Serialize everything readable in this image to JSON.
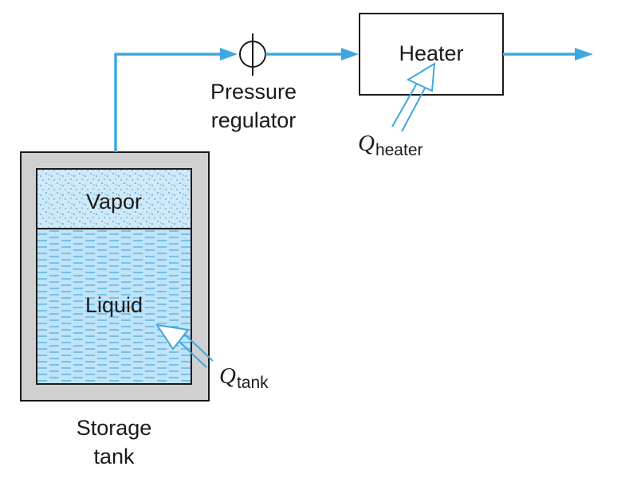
{
  "labels": {
    "heater": "Heater",
    "pressure_regulator_line1": "Pressure",
    "pressure_regulator_line2": "regulator",
    "vapor": "Vapor",
    "liquid": "Liquid",
    "q_symbol": "Q",
    "q_heater_subscript": "heater",
    "q_tank_subscript": "tank",
    "storage_tank_line1": "Storage",
    "storage_tank_line2": "tank"
  },
  "colors": {
    "flow_line": "#3fa7e0",
    "tank_wall": "#d0d0d0",
    "vapor_fill": "#cfe9f8",
    "liquid_fill": "#bfe3f8",
    "dash": "#4aa9df",
    "outline": "#1a1a1a"
  }
}
